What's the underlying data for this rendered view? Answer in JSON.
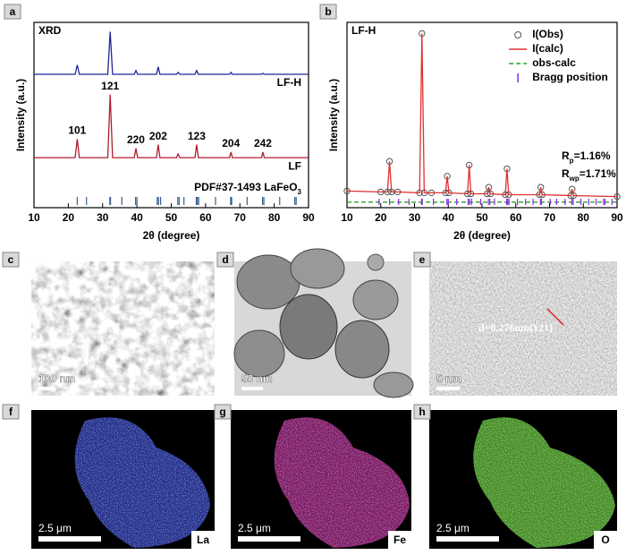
{
  "panel_labels": [
    "a",
    "b",
    "c",
    "d",
    "e",
    "f",
    "g",
    "h"
  ],
  "chart_data": [
    {
      "type": "line",
      "title": "XRD",
      "ylabel": "Intensity (a.u.)",
      "xlabel": "2θ (degree)",
      "x": [
        10,
        20,
        22,
        22.6,
        23.2,
        25,
        31.5,
        32.2,
        32.9,
        35,
        39.2,
        39.7,
        40.2,
        45.7,
        46.2,
        46.7,
        51.5,
        52,
        52.5,
        56.9,
        57.4,
        57.9,
        67,
        67.4,
        67.8,
        76.3,
        76.7,
        77.1,
        90
      ],
      "series": [
        {
          "name": "LF-H",
          "color": "#23239a",
          "values": [
            72,
            72,
            72,
            77,
            72,
            72,
            72,
            95,
            72,
            72,
            72,
            74,
            72,
            72,
            76,
            72,
            72,
            73,
            72,
            72,
            74,
            72,
            72,
            73,
            72,
            72,
            72.5,
            72,
            72
          ]
        },
        {
          "name": "LF",
          "color": "#b01c2e",
          "values": [
            27,
            27,
            27,
            37,
            27,
            27,
            27,
            61,
            27,
            27,
            27,
            32,
            27,
            27,
            34,
            27,
            27,
            29,
            27,
            27,
            34,
            27,
            27,
            30,
            27,
            27,
            30,
            27,
            27
          ]
        }
      ],
      "peak_labels": [
        "101",
        "121",
        "220",
        "202",
        "123",
        "204",
        "242"
      ],
      "reference": {
        "name": "PDF#37-1493 LaFeO",
        "sub": "3",
        "color": "#3a5f8a",
        "positions": [
          22.6,
          25.3,
          32.1,
          32.3,
          35.6,
          39.6,
          40.0,
          45.9,
          46.3,
          46.9,
          51.9,
          52.3,
          53.7,
          57.3,
          57.6,
          58.0,
          62.9,
          67.3,
          67.6,
          72.1,
          76.6,
          77.0,
          81.6,
          86.0,
          86.4
        ]
      },
      "xlim": [
        10,
        90
      ],
      "xticks": [
        10,
        20,
        30,
        40,
        50,
        60,
        70,
        80,
        90
      ],
      "ylim": [
        0,
        100
      ]
    },
    {
      "type": "rietveld",
      "title": "LF-H",
      "ylabel": "Intensity (a.u.)",
      "xlabel": "2θ (degree)",
      "x": [
        10,
        20,
        22,
        22.6,
        23.2,
        25,
        31.5,
        32.2,
        32.9,
        35,
        39.2,
        39.7,
        40.2,
        45.7,
        46.2,
        46.7,
        51.5,
        52,
        52.5,
        56.9,
        57.4,
        57.9,
        67,
        67.4,
        67.8,
        76.3,
        76.7,
        77.1,
        90
      ],
      "series": [
        {
          "name": "I(Obs)",
          "color": "#555555",
          "marker": "circle",
          "values": [
            9,
            8.5,
            8.5,
            25,
            8.5,
            8.5,
            8,
            94,
            8,
            8,
            8,
            17,
            8,
            7.5,
            23,
            7.5,
            7.5,
            11,
            7.5,
            7,
            21,
            7,
            7,
            11,
            7,
            6.5,
            10,
            6.5,
            6
          ]
        },
        {
          "name": "I(calc)",
          "color": "#e03030",
          "values": [
            9,
            8.5,
            8.5,
            25,
            8.5,
            8.5,
            8,
            94,
            8,
            8,
            8,
            17,
            8,
            7.5,
            23,
            7.5,
            7.5,
            11,
            7.5,
            7,
            21,
            7,
            7,
            11,
            7,
            6.5,
            10,
            6.5,
            6
          ]
        },
        {
          "name": "obs-calc",
          "color": "#2ca02c",
          "dash": true,
          "values": [
            3,
            3,
            3,
            3,
            3,
            3,
            3,
            3,
            3,
            3,
            3,
            3,
            3,
            3,
            3,
            3,
            3,
            3,
            3,
            3,
            3,
            3,
            3,
            3,
            3,
            3,
            3,
            3,
            3
          ]
        }
      ],
      "bragg": {
        "name": "Bragg position",
        "color": "#8a2be2",
        "positions": [
          19.5,
          22.6,
          25.3,
          28.4,
          32.1,
          32.3,
          35.6,
          39.6,
          40.0,
          42.5,
          45.9,
          46.3,
          46.9,
          49.6,
          51.9,
          52.3,
          53.7,
          57.3,
          57.6,
          58.0,
          60.5,
          62.9,
          65.1,
          67.3,
          67.6,
          70.2,
          72.1,
          74.6,
          76.6,
          77.0,
          79.3,
          81.6,
          83.8,
          86.0,
          86.4,
          88.5
        ]
      },
      "annotations": [
        {
          "main": "R",
          "sub": "p",
          "rest": "=1.16%"
        },
        {
          "main": "R",
          "sub": "wp",
          "rest": "=1.71%"
        }
      ],
      "legend": "upper right",
      "xlim": [
        10,
        90
      ],
      "xticks": [
        10,
        20,
        30,
        40,
        50,
        60,
        70,
        80,
        90
      ],
      "ylim": [
        0,
        100
      ]
    }
  ],
  "images": [
    {
      "scale_bar": "100 nm"
    },
    {
      "scale_bar": "50 nm"
    },
    {
      "scale_bar": "5 nm",
      "annotation": "d=0.276nm(121)"
    },
    {
      "scale_bar": "2.5 μm",
      "element": "La"
    },
    {
      "scale_bar": "2.5 μm",
      "element": "Fe"
    },
    {
      "scale_bar": "2.5 μm",
      "element": "O"
    }
  ]
}
